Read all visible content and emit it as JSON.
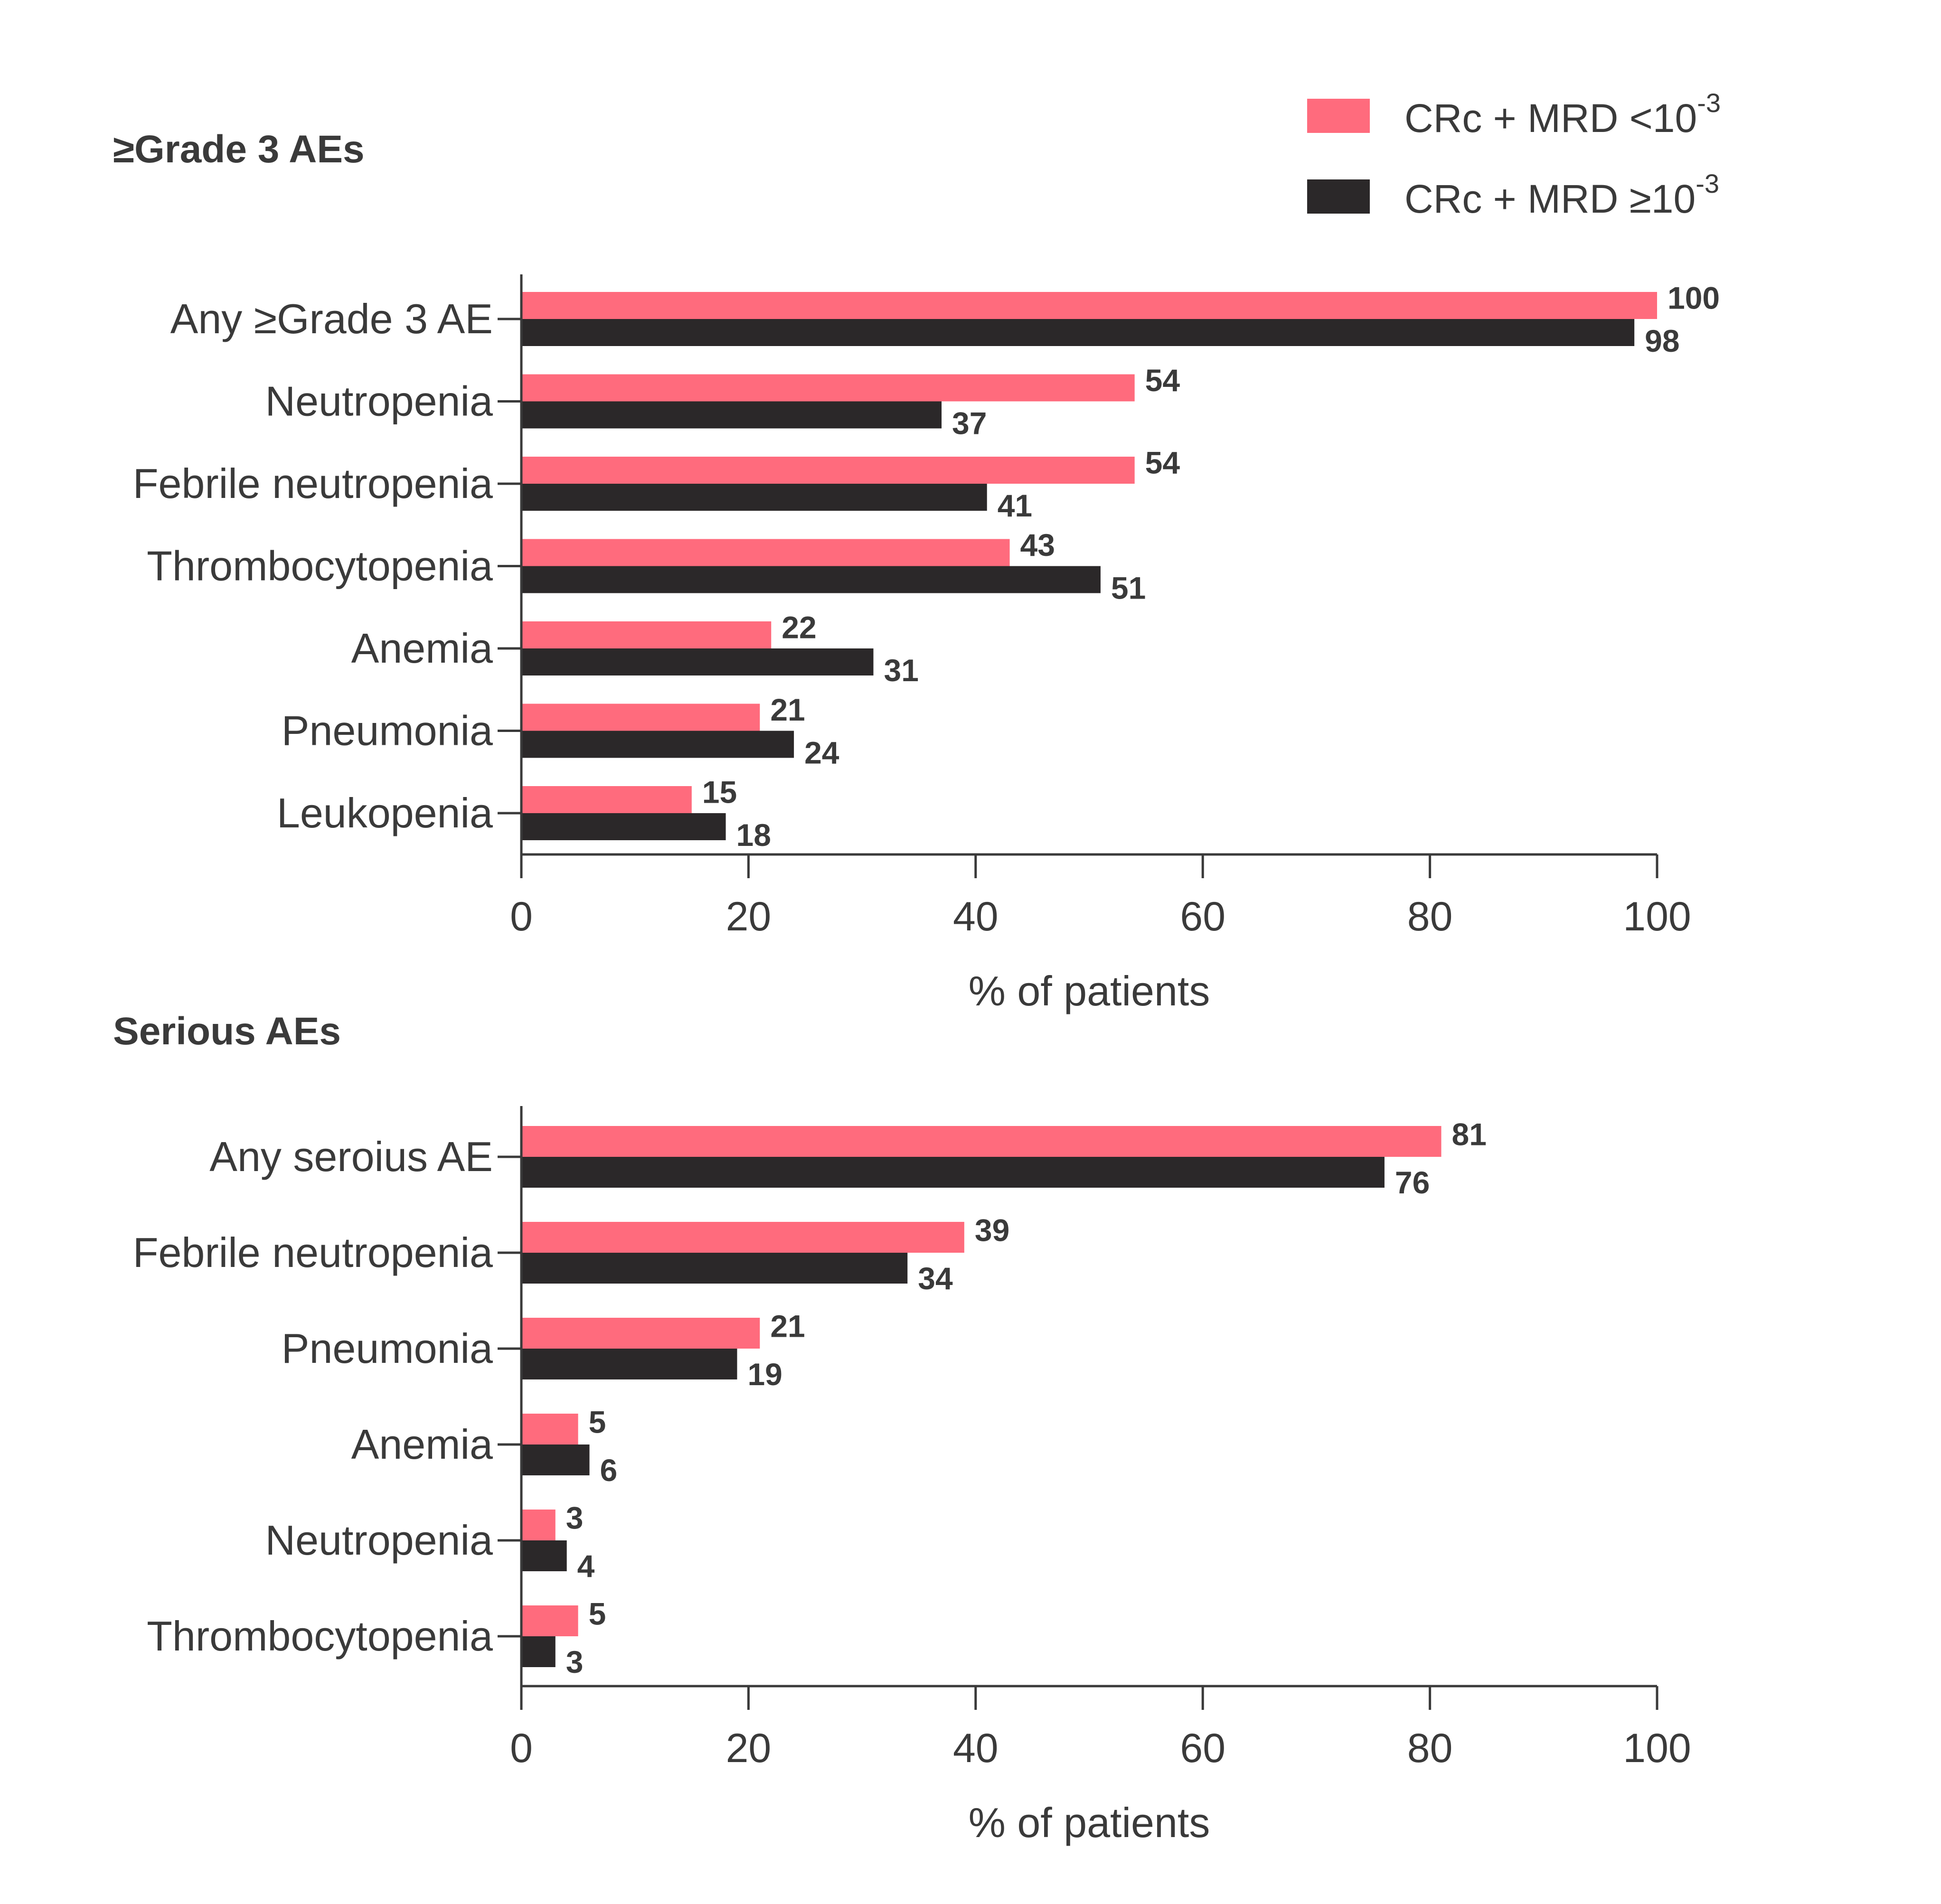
{
  "legend": [
    {
      "base": "CRc + MRD <10",
      "sup": "-3",
      "color": "#ff6b7d"
    },
    {
      "base": "CRc + MRD ≥10",
      "sup": "-3",
      "color": "#2b2829"
    }
  ],
  "chart_data": [
    {
      "type": "bar",
      "orientation": "horizontal",
      "title": "≥Grade 3 AEs",
      "xlabel": "% of patients",
      "ylabel": "",
      "xlim": [
        0,
        100
      ],
      "xticks": [
        "0",
        "20",
        "40",
        "60",
        "80",
        "100"
      ],
      "grid": false,
      "legend_position": "top-right",
      "categories": [
        "Any ≥Grade 3 AE",
        "Neutropenia",
        "Febrile neutropenia",
        "Thrombocytopenia",
        "Anemia",
        "Pneumonia",
        "Leukopenia"
      ],
      "series": [
        {
          "name": "CRc + MRD <10-3",
          "color": "#ff6b7d",
          "values": [
            100,
            54,
            54,
            43,
            22,
            21,
            15
          ]
        },
        {
          "name": "CRc + MRD ≥10-3",
          "color": "#2b2829",
          "values": [
            98,
            37,
            41,
            51,
            31,
            24,
            18
          ]
        }
      ]
    },
    {
      "type": "bar",
      "orientation": "horizontal",
      "title": "Serious AEs",
      "xlabel": "% of patients",
      "ylabel": "",
      "xlim": [
        0,
        100
      ],
      "xticks": [
        "0",
        "20",
        "40",
        "60",
        "80",
        "100"
      ],
      "grid": false,
      "categories": [
        "Any seroius AE",
        "Febrile neutropenia",
        "Pneumonia",
        "Anemia",
        "Neutropenia",
        "Thrombocytopenia"
      ],
      "series": [
        {
          "name": "CRc + MRD <10-3",
          "color": "#ff6b7d",
          "values": [
            81,
            39,
            21,
            5,
            3,
            5
          ]
        },
        {
          "name": "CRc + MRD ≥10-3",
          "color": "#2b2829",
          "values": [
            76,
            34,
            19,
            6,
            4,
            3
          ]
        }
      ]
    }
  ]
}
